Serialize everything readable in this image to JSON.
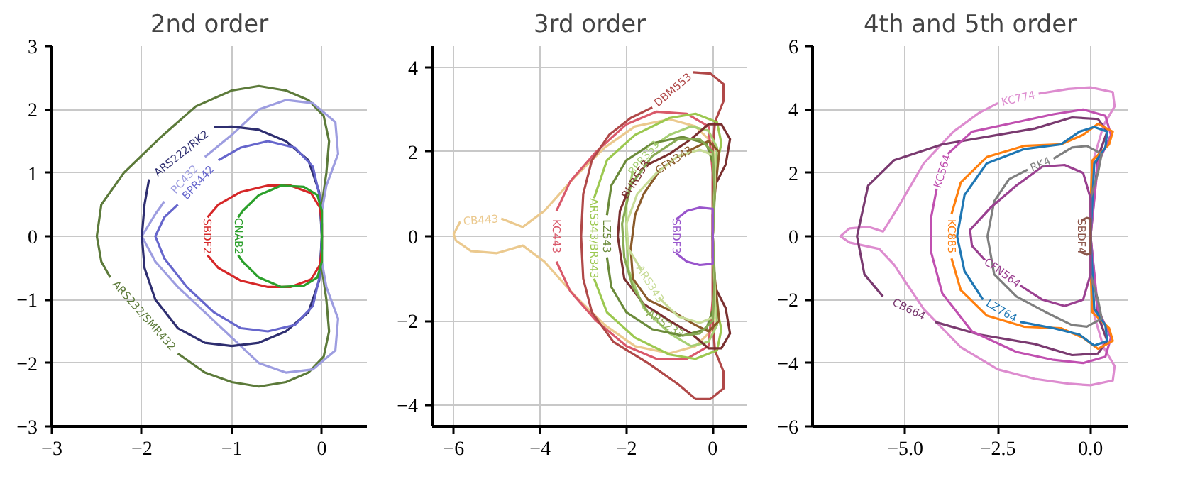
{
  "chart_data": [
    {
      "type": "line",
      "title": "2nd order",
      "grid": true,
      "xlim": [
        -3,
        0.5
      ],
      "ylim": [
        -3,
        3
      ],
      "xticks": [
        {
          "value": -3,
          "label": "−3"
        },
        {
          "value": -2,
          "label": "−2"
        },
        {
          "value": -1,
          "label": "−1"
        },
        0
      ],
      "yticks": [
        {
          "value": -3,
          "label": "−3"
        },
        {
          "value": -2,
          "label": "−2"
        },
        {
          "value": -1,
          "label": "−1"
        },
        0,
        1,
        2,
        3
      ],
      "series": [
        {
          "name": "ARS232/SMR432",
          "color": "#5c7a3a",
          "x": [
            -1.6,
            -1.3,
            -1.0,
            -0.7,
            -0.4,
            -0.15,
            0.02,
            0.08,
            0.05,
            0,
            0,
            0,
            0.05,
            0.08,
            0.02,
            -0.15,
            -0.4,
            -0.7,
            -1.0,
            -1.4,
            -1.8,
            -2.2,
            -2.45,
            -2.5,
            -2.45,
            -2.35
          ],
          "values": [
            -1.85,
            -2.15,
            -2.3,
            -2.37,
            -2.3,
            -2.15,
            -1.9,
            -1.5,
            -1.0,
            -0.5,
            0,
            0.5,
            1.0,
            1.5,
            1.9,
            2.15,
            2.3,
            2.37,
            2.3,
            2.05,
            1.55,
            1.0,
            0.5,
            0,
            -0.4,
            -0.65
          ]
        },
        {
          "name": "PC432",
          "color": "#9d9de0",
          "x": [
            -1.3,
            -1.0,
            -0.7,
            -0.4,
            -0.1,
            0.15,
            0.18,
            0.05,
            0,
            0,
            0.05,
            0.18,
            0.15,
            -0.1,
            -0.4,
            -0.7,
            -1.0,
            -1.3,
            -1.6,
            -1.85,
            -2.0,
            -1.85,
            -1.75
          ],
          "values": [
            1.25,
            1.6,
            2.0,
            2.15,
            2.1,
            1.8,
            1.3,
            0.8,
            0.4,
            -0.4,
            -0.8,
            -1.3,
            -1.8,
            -2.1,
            -2.15,
            -2.0,
            -1.6,
            -1.2,
            -0.8,
            -0.4,
            0,
            0.35,
            0.55
          ]
        },
        {
          "name": "ARS222/RK2",
          "color": "#2e2e70",
          "x": [
            -1.2,
            -1.0,
            -0.7,
            -0.4,
            -0.15,
            -0.03,
            0,
            -0.03,
            -0.15,
            -0.4,
            -0.7,
            -1.0,
            -1.3,
            -1.6,
            -1.85,
            -1.97,
            -2.0,
            -1.97,
            -1.92
          ],
          "values": [
            1.72,
            1.73,
            1.68,
            1.5,
            1.2,
            0.7,
            0,
            -0.7,
            -1.2,
            -1.5,
            -1.68,
            -1.73,
            -1.68,
            -1.45,
            -1.0,
            -0.5,
            0,
            0.5,
            0.9
          ]
        },
        {
          "name": "BPR442",
          "color": "#6666cc",
          "x": [
            -1.15,
            -0.9,
            -0.6,
            -0.3,
            -0.1,
            -0.02,
            0,
            -0.02,
            -0.1,
            -0.3,
            -0.6,
            -0.9,
            -1.2,
            -1.5,
            -1.75,
            -1.85,
            -1.75,
            -1.6
          ],
          "values": [
            1.2,
            1.4,
            1.5,
            1.4,
            1.1,
            0.6,
            0,
            -0.6,
            -1.1,
            -1.4,
            -1.5,
            -1.45,
            -1.2,
            -0.8,
            -0.35,
            0,
            0.3,
            0.5
          ]
        },
        {
          "name": "SBDF2",
          "color": "#d62728",
          "x": [
            -1.27,
            -1.15,
            -0.9,
            -0.6,
            -0.35,
            -0.12,
            -0.02,
            0,
            0,
            -0.02,
            -0.12,
            -0.35,
            -0.6,
            -0.9,
            -1.15,
            -1.27
          ],
          "values": [
            -0.3,
            -0.5,
            -0.7,
            -0.8,
            -0.8,
            -0.68,
            -0.45,
            -0.2,
            0.2,
            0.45,
            0.68,
            0.8,
            0.8,
            0.7,
            0.5,
            0.3
          ]
        },
        {
          "name": "CNAB2",
          "color": "#2ca02c",
          "x": [
            -0.93,
            -0.88,
            -0.7,
            -0.45,
            -0.2,
            -0.05,
            0,
            0,
            -0.05,
            -0.2,
            -0.45,
            -0.7,
            -0.88,
            -0.93
          ],
          "values": [
            -0.3,
            -0.4,
            -0.65,
            -0.8,
            -0.78,
            -0.65,
            -0.4,
            0.4,
            0.65,
            0.78,
            0.8,
            0.65,
            0.4,
            0.3
          ]
        }
      ]
    },
    {
      "type": "line",
      "title": "3rd order",
      "grid": true,
      "xlim": [
        -6.5,
        0.8
      ],
      "ylim": [
        -4.5,
        4.5
      ],
      "xticks": [
        {
          "value": -6,
          "label": "−6"
        },
        {
          "value": -4,
          "label": "−4"
        },
        {
          "value": -2,
          "label": "−2"
        },
        0
      ],
      "yticks": [
        {
          "value": -4,
          "label": "−4"
        },
        {
          "value": -2,
          "label": "−2"
        },
        0,
        2,
        4
      ],
      "series": [
        {
          "name": "CB443",
          "color": "#ebc98e",
          "x": [
            -4.9,
            -4.4,
            -3.9,
            -3.2,
            -2.5,
            -1.8,
            -1.0,
            -0.4,
            0,
            0.05,
            0,
            0,
            0.05,
            0,
            -0.4,
            -1.0,
            -1.8,
            -2.5,
            -3.2,
            -3.9,
            -4.4,
            -5.0,
            -5.6,
            -5.95,
            -6.0,
            -5.85
          ],
          "values": [
            0.42,
            0.22,
            0.6,
            1.4,
            2.1,
            2.6,
            2.77,
            2.6,
            2.2,
            1.5,
            0.5,
            -0.5,
            -1.5,
            -2.2,
            -2.6,
            -2.77,
            -2.6,
            -2.1,
            -1.4,
            -0.6,
            -0.22,
            -0.4,
            -0.35,
            -0.1,
            0.05,
            0.35
          ]
        },
        {
          "name": "KC443",
          "color": "#d9596a",
          "x": [
            -3.62,
            -3.3,
            -2.7,
            -2.0,
            -1.3,
            -0.6,
            -0.1,
            0,
            0,
            0,
            -0.1,
            -0.6,
            -1.3,
            -2.0,
            -2.7,
            -3.3,
            -3.62
          ],
          "values": [
            -0.6,
            -1.3,
            -2.0,
            -2.6,
            -2.9,
            -2.9,
            -2.6,
            -1.5,
            0,
            1.5,
            2.6,
            2.9,
            2.95,
            2.65,
            2.0,
            1.3,
            0.6
          ]
        },
        {
          "name": "DBM553",
          "color": "#b04848",
          "x": [
            -0.45,
            -0.05,
            0.25,
            0.25,
            0.05,
            0,
            0,
            0,
            0.05,
            0.25,
            0.25,
            -0.05,
            -0.4,
            -0.8,
            -1.5,
            -2.3,
            -2.8,
            -3.0,
            -3.05,
            -3.0,
            -2.8,
            -2.4,
            -1.9,
            -1.4
          ],
          "values": [
            3.88,
            3.85,
            3.6,
            3.2,
            2.7,
            2.0,
            0,
            -2.0,
            -2.7,
            -3.2,
            -3.6,
            -3.85,
            -3.85,
            -3.5,
            -3.0,
            -2.5,
            -1.8,
            -1.0,
            0,
            1.0,
            1.8,
            2.4,
            2.8,
            3.05
          ]
        },
        {
          "name": "ARS343/BR343",
          "color": "#9cc850",
          "x": [
            -2.75,
            -2.45,
            -1.8,
            -1.0,
            -0.4,
            0.1,
            0.2,
            0.05,
            0,
            0.05,
            0.2,
            0.1,
            -0.4,
            -1.0,
            -1.8,
            -2.45,
            -2.75
          ],
          "values": [
            -1.0,
            -1.8,
            -2.4,
            -2.8,
            -2.9,
            -2.7,
            -2.2,
            -1.5,
            0,
            1.5,
            2.2,
            2.7,
            2.9,
            2.8,
            2.4,
            1.8,
            0.9
          ]
        },
        {
          "name": "BPR353",
          "color": "#a6cf74",
          "x": [
            -1.35,
            -1.0,
            -0.5,
            -0.1,
            0.1,
            0.05,
            0,
            0.05,
            0.1,
            -0.1,
            -0.5,
            -1.0,
            -1.6,
            -1.95,
            -2.0,
            -2.0,
            -1.85
          ],
          "values": [
            2.15,
            2.4,
            2.6,
            2.5,
            2.1,
            1.2,
            0,
            -1.2,
            -2.1,
            -2.5,
            -2.6,
            -2.3,
            -1.7,
            -0.8,
            0,
            0.8,
            1.55
          ]
        },
        {
          "name": "LZ543",
          "color": "#6b8a3a",
          "x": [
            -2.45,
            -2.35,
            -2.0,
            -1.4,
            -0.7,
            -0.15,
            0.05,
            0,
            0.05,
            -0.15,
            -0.7,
            -1.4,
            -2.0,
            -2.35,
            -2.45
          ],
          "values": [
            -0.5,
            -1.2,
            -1.8,
            -2.2,
            -2.35,
            -2.2,
            -1.6,
            0,
            1.6,
            2.2,
            2.35,
            2.2,
            1.8,
            1.2,
            0.5
          ]
        },
        {
          "name": "BHR553",
          "color": "#7a3030",
          "x": [
            -1.6,
            -1.0,
            -0.5,
            -0.1,
            0.2,
            0.4,
            0.3,
            0.05,
            0,
            0.05,
            0.3,
            0.4,
            0.2,
            -0.1,
            -0.5,
            -1.0,
            -1.6,
            -2.05,
            -2.2,
            -2.15,
            -1.97
          ],
          "values": [
            1.65,
            1.95,
            2.3,
            2.65,
            2.65,
            2.3,
            1.7,
            1.2,
            0,
            -1.2,
            -1.7,
            -2.3,
            -2.65,
            -2.65,
            -2.3,
            -2.0,
            -1.6,
            -1.0,
            0,
            0.6,
            1.05
          ]
        },
        {
          "name": "CFN343",
          "color": "#8a5a2a",
          "x": [
            -0.6,
            -0.4,
            -0.1,
            0.15,
            0.1,
            0,
            0,
            0.1,
            0.15,
            -0.1,
            -0.4,
            -0.9,
            -1.5,
            -1.85,
            -1.9,
            -1.8,
            -1.6,
            -1.2
          ],
          "values": [
            2.0,
            2.1,
            2.25,
            2.0,
            1.5,
            0.5,
            -0.5,
            -1.5,
            -2.0,
            -2.25,
            -2.1,
            -1.8,
            -1.5,
            -1.0,
            -0.3,
            0.5,
            1.0,
            1.6
          ]
        },
        {
          "name": "ARS343",
          "color": "#c8dc98",
          "x": [
            -1.25,
            -0.8,
            -0.3,
            0.05,
            0.05,
            0,
            0.05,
            0.05,
            -0.3,
            -0.8,
            -1.3,
            -1.75,
            -2.0,
            -1.95,
            -1.65
          ],
          "values": [
            -1.45,
            -1.9,
            -2.05,
            -1.9,
            -1.2,
            0,
            1.2,
            1.9,
            2.05,
            1.9,
            1.5,
            1.0,
            0.3,
            -0.3,
            -0.8
          ]
        },
        {
          "name": "ARS233",
          "color": "#88aa55",
          "x": [
            -0.7,
            -0.3,
            0,
            0.05,
            0,
            0.05,
            0,
            -0.3,
            -0.8,
            -1.4,
            -1.9,
            -2.1,
            -2.05,
            -1.85,
            -1.5
          ],
          "values": [
            -2.35,
            -2.3,
            -2.0,
            -1.0,
            0,
            1.0,
            2.0,
            2.3,
            2.3,
            1.9,
            1.2,
            0.3,
            -0.5,
            -1.2,
            -1.8
          ]
        },
        {
          "name": "SBDF3",
          "color": "#9955cc",
          "x": [
            -0.85,
            -0.6,
            -0.3,
            0,
            0,
            -0.3,
            -0.6,
            -0.85
          ],
          "values": [
            -0.4,
            -0.6,
            -0.68,
            -0.65,
            0.65,
            0.68,
            0.6,
            0.4
          ]
        }
      ]
    },
    {
      "type": "line",
      "title": "4th and 5th order",
      "grid": true,
      "xlim": [
        -7.5,
        1.0
      ],
      "ylim": [
        -6,
        6
      ],
      "xticks": [
        {
          "value": -5,
          "label": "−5.0"
        },
        {
          "value": -2.5,
          "label": "−2.5"
        },
        {
          "value": 0,
          "label": "0.0"
        }
      ],
      "yticks": [
        {
          "value": -6,
          "label": "−6"
        },
        {
          "value": -4,
          "label": "−4"
        },
        {
          "value": -2,
          "label": "−2"
        },
        0,
        2,
        4,
        6
      ],
      "series": [
        {
          "name": "KC774",
          "color": "#dd8ccf",
          "x": [
            -1.4,
            -0.6,
            0,
            0.6,
            0.65,
            0.35,
            0.1,
            0,
            0.1,
            0.35,
            0.65,
            0.6,
            0,
            -0.6,
            -1.5,
            -2.5,
            -3.5,
            -4.5,
            -5.3,
            -5.7,
            -6.5,
            -6.75,
            -6.5,
            -6.0,
            -5.6,
            -5.2,
            -4.5,
            -3.7,
            -3.0,
            -2.5
          ],
          "values": [
            4.5,
            4.65,
            4.7,
            4.55,
            4.1,
            3.5,
            2.5,
            0,
            -2.5,
            -3.5,
            -4.1,
            -4.55,
            -4.7,
            -4.65,
            -4.5,
            -4.2,
            -3.5,
            -2.3,
            -0.9,
            -0.4,
            -0.2,
            0,
            0.25,
            0.3,
            0.15,
            0.9,
            2.3,
            3.3,
            3.9,
            4.2
          ]
        },
        {
          "name": "CB664",
          "color": "#7a3a70",
          "x": [
            -4.2,
            -3.0,
            -1.5,
            -0.5,
            0.2,
            0.45,
            0.2,
            0,
            0.2,
            0.45,
            0.2,
            -0.5,
            -1.5,
            -2.5,
            -4.0,
            -5.3,
            -6.0,
            -6.3,
            -6.1,
            -5.6
          ],
          "values": [
            -2.7,
            -3.1,
            -3.4,
            -3.75,
            -3.7,
            -3.3,
            -2.5,
            0,
            2.5,
            3.3,
            3.7,
            3.75,
            3.4,
            3.2,
            2.9,
            2.4,
            1.6,
            0,
            -1.2,
            -1.9
          ]
        },
        {
          "name": "KC564",
          "color": "#c050b0",
          "x": [
            -3.85,
            -3.2,
            -2.0,
            -1.0,
            -0.2,
            0.4,
            0.55,
            0.2,
            0,
            0.2,
            0.55,
            0.4,
            -0.2,
            -1.0,
            -2.0,
            -3.2,
            -4.0,
            -4.3,
            -4.3,
            -4.15
          ],
          "values": [
            2.6,
            3.3,
            3.6,
            3.85,
            4.0,
            3.8,
            3.2,
            2.3,
            0,
            -2.3,
            -3.2,
            -3.8,
            -4.0,
            -3.9,
            -3.65,
            -3.0,
            -1.8,
            -0.5,
            0.6,
            1.5
          ]
        },
        {
          "name": "KC885",
          "color": "#ff7f0e",
          "x": [
            -3.75,
            -3.5,
            -2.8,
            -1.8,
            -0.8,
            -0.2,
            0.2,
            0.6,
            0.5,
            0.05,
            0,
            0,
            0.05,
            0.5,
            0.6,
            0.2,
            -0.2,
            -0.8,
            -1.8,
            -2.8,
            -3.5,
            -3.75
          ],
          "values": [
            -0.7,
            -1.7,
            -2.5,
            -2.85,
            -2.9,
            -3.2,
            -3.55,
            -3.3,
            -2.9,
            -2.4,
            -1.0,
            1.0,
            2.4,
            2.9,
            3.3,
            3.55,
            3.2,
            2.9,
            2.85,
            2.5,
            1.7,
            0.7
          ]
        },
        {
          "name": "LZ764",
          "color": "#1f77b4",
          "x": [
            -1.9,
            -1.0,
            -0.3,
            0.1,
            0.45,
            0.4,
            0.1,
            0,
            0.1,
            0.4,
            0.45,
            0.1,
            -0.3,
            -0.8,
            -1.8,
            -2.8,
            -3.4,
            -3.6,
            -3.4,
            -2.9
          ],
          "values": [
            -2.7,
            -2.9,
            -3.1,
            -3.45,
            -3.3,
            -2.8,
            -2.3,
            0,
            2.3,
            2.8,
            3.3,
            3.45,
            3.3,
            2.9,
            2.75,
            2.3,
            1.3,
            0,
            -1.1,
            -2.0
          ]
        },
        {
          "name": "RK4",
          "color": "#7f7f7f",
          "x": [
            -1.0,
            -0.5,
            -0.1,
            0.3,
            0.2,
            0,
            0,
            0.2,
            0.3,
            -0.1,
            -0.5,
            -1.2,
            -2.0,
            -2.6,
            -2.78,
            -2.6,
            -2.2,
            -1.7
          ],
          "values": [
            2.45,
            2.8,
            2.85,
            2.6,
            2.0,
            1.2,
            -1.2,
            -2.0,
            -2.6,
            -2.85,
            -2.8,
            -2.4,
            -1.9,
            -1.2,
            0,
            1.1,
            1.8,
            2.1
          ]
        },
        {
          "name": "CFN564",
          "color": "#9a4090",
          "x": [
            -1.9,
            -1.3,
            -0.7,
            -0.2,
            0,
            0,
            -0.2,
            -0.7,
            -1.3,
            -2.0,
            -2.7,
            -3.25,
            -3.2,
            -2.85
          ],
          "values": [
            -1.55,
            -2.0,
            -2.2,
            -2.0,
            -1.2,
            1.2,
            2.0,
            2.25,
            2.2,
            1.6,
            0.9,
            0.2,
            -0.3,
            -0.75
          ]
        },
        {
          "name": "SBDF4",
          "color": "#8c564b",
          "x": [
            -0.25,
            -0.1,
            0,
            0,
            -0.1,
            -0.25
          ],
          "values": [
            -0.5,
            -0.58,
            -0.55,
            0.55,
            0.58,
            0.5
          ]
        }
      ]
    }
  ]
}
